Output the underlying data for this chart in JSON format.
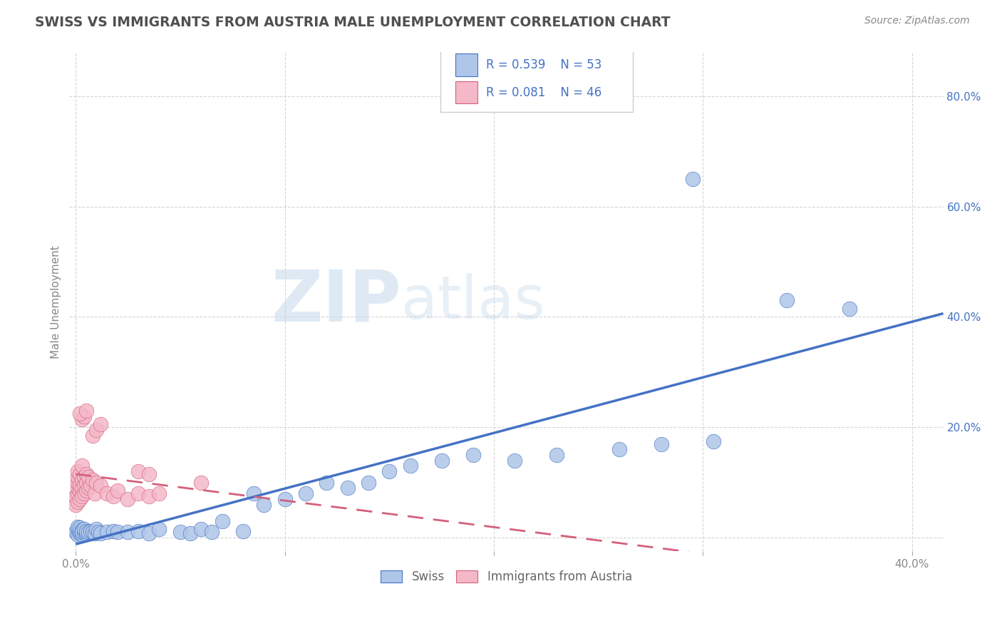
{
  "title": "SWISS VS IMMIGRANTS FROM AUSTRIA MALE UNEMPLOYMENT CORRELATION CHART",
  "source": "Source: ZipAtlas.com",
  "ylabel": "Male Unemployment",
  "y_ticks": [
    0.0,
    0.2,
    0.4,
    0.6,
    0.8
  ],
  "y_tick_labels": [
    "",
    "20.0%",
    "40.0%",
    "60.0%",
    "80.0%"
  ],
  "x_range": [
    -0.003,
    0.415
  ],
  "y_range": [
    -0.025,
    0.88
  ],
  "swiss_R": 0.539,
  "swiss_N": 53,
  "austria_R": 0.081,
  "austria_N": 46,
  "swiss_color": "#aec6e8",
  "austria_color": "#f4b8c8",
  "swiss_line_color": "#4472c4",
  "austria_line_color": "#d4607a",
  "legend_text_color": "#4472c4",
  "title_color": "#505050",
  "watermark_zip": "ZIP",
  "watermark_atlas": "atlas",
  "background_color": "#ffffff",
  "grid_color": "#cccccc",
  "swiss_x": [
    0.0,
    0.001,
    0.001,
    0.001,
    0.002,
    0.002,
    0.002,
    0.003,
    0.003,
    0.003,
    0.004,
    0.004,
    0.005,
    0.005,
    0.006,
    0.007,
    0.008,
    0.009,
    0.01,
    0.011,
    0.012,
    0.015,
    0.018,
    0.02,
    0.025,
    0.03,
    0.035,
    0.04,
    0.05,
    0.055,
    0.06,
    0.065,
    0.07,
    0.08,
    0.085,
    0.09,
    0.1,
    0.11,
    0.12,
    0.13,
    0.14,
    0.15,
    0.16,
    0.175,
    0.19,
    0.21,
    0.23,
    0.26,
    0.28,
    0.305,
    0.295,
    0.34,
    0.37
  ],
  "swiss_y": [
    0.01,
    0.005,
    0.015,
    0.02,
    0.008,
    0.012,
    0.018,
    0.006,
    0.014,
    0.01,
    0.01,
    0.015,
    0.008,
    0.012,
    0.01,
    0.012,
    0.01,
    0.008,
    0.015,
    0.01,
    0.008,
    0.01,
    0.012,
    0.01,
    0.01,
    0.012,
    0.008,
    0.015,
    0.01,
    0.008,
    0.015,
    0.01,
    0.03,
    0.012,
    0.08,
    0.06,
    0.07,
    0.08,
    0.1,
    0.09,
    0.1,
    0.12,
    0.13,
    0.14,
    0.15,
    0.14,
    0.15,
    0.16,
    0.17,
    0.175,
    0.65,
    0.43,
    0.415
  ],
  "austria_x": [
    0.0,
    0.0,
    0.001,
    0.001,
    0.001,
    0.001,
    0.001,
    0.001,
    0.002,
    0.002,
    0.002,
    0.002,
    0.003,
    0.003,
    0.003,
    0.003,
    0.004,
    0.004,
    0.004,
    0.005,
    0.005,
    0.005,
    0.006,
    0.006,
    0.007,
    0.008,
    0.009,
    0.01,
    0.012,
    0.015,
    0.018,
    0.02,
    0.025,
    0.03,
    0.035,
    0.04,
    0.008,
    0.01,
    0.012,
    0.003,
    0.004,
    0.002,
    0.005,
    0.03,
    0.035,
    0.06
  ],
  "austria_y": [
    0.06,
    0.075,
    0.065,
    0.08,
    0.09,
    0.1,
    0.11,
    0.12,
    0.07,
    0.085,
    0.095,
    0.115,
    0.075,
    0.09,
    0.105,
    0.13,
    0.08,
    0.095,
    0.11,
    0.085,
    0.1,
    0.115,
    0.09,
    0.11,
    0.095,
    0.105,
    0.08,
    0.1,
    0.095,
    0.08,
    0.075,
    0.085,
    0.07,
    0.08,
    0.075,
    0.08,
    0.185,
    0.195,
    0.205,
    0.215,
    0.22,
    0.225,
    0.23,
    0.12,
    0.115,
    0.1
  ]
}
